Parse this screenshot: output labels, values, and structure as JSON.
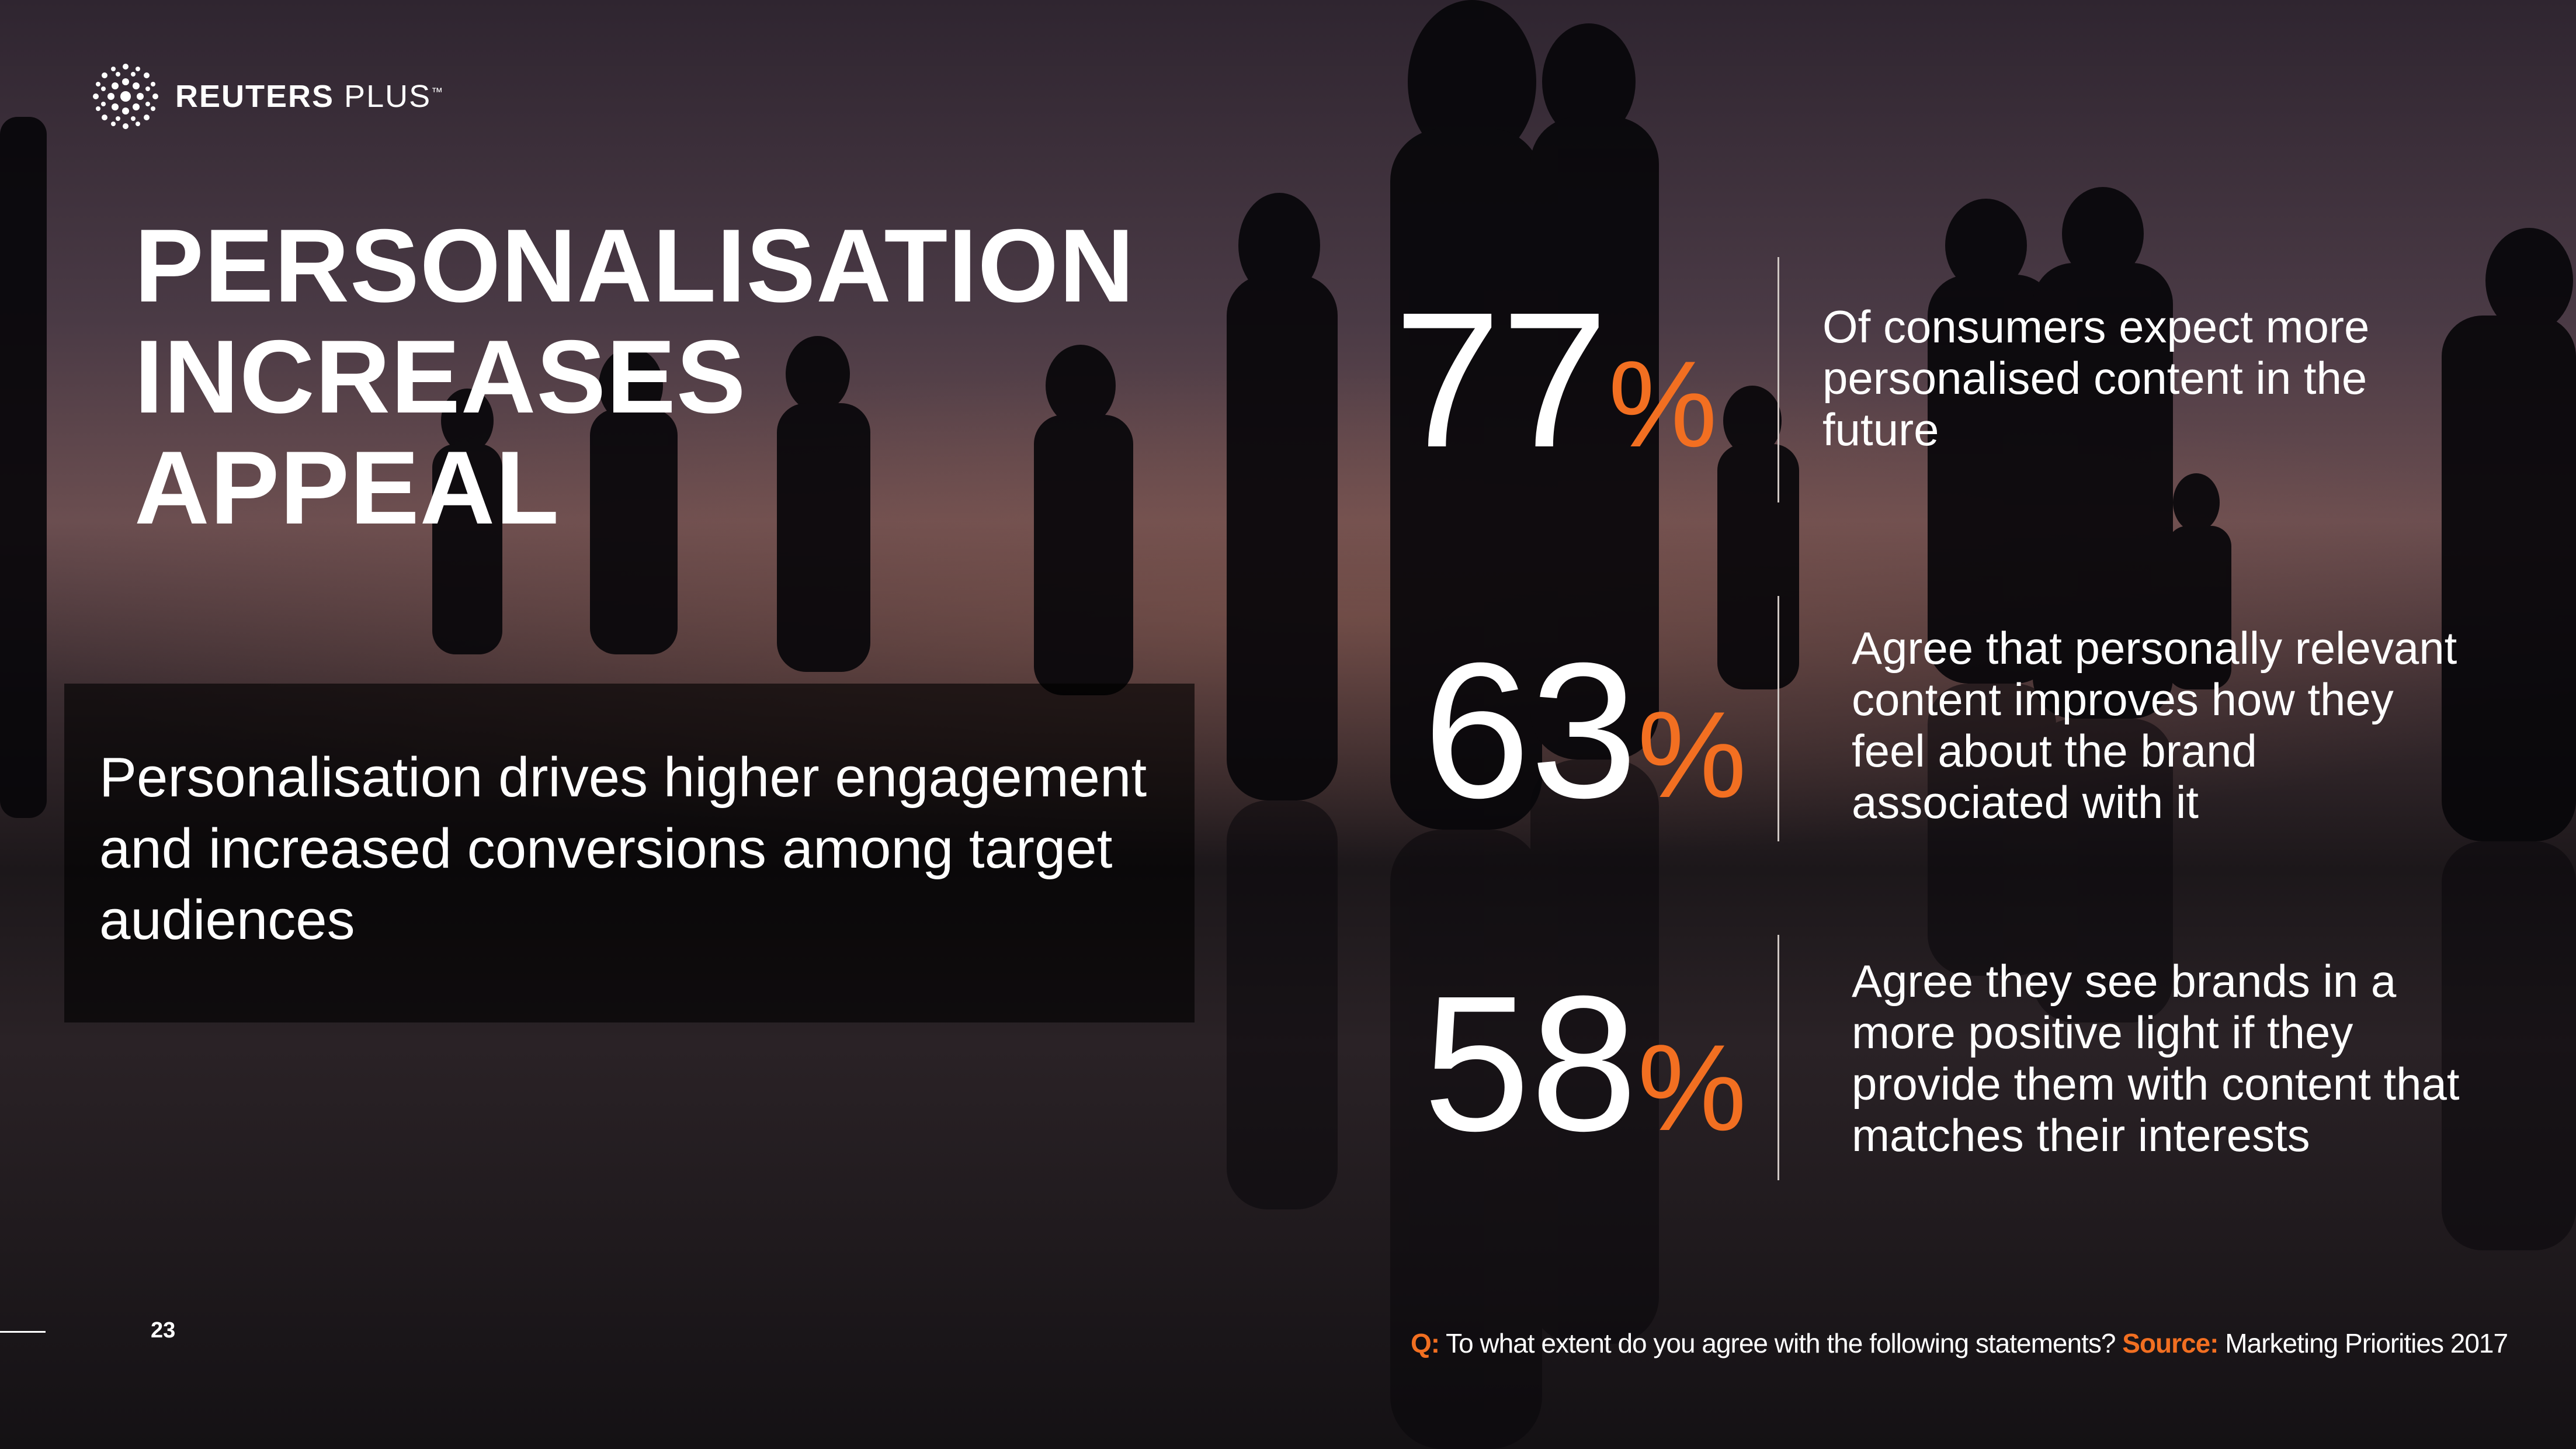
{
  "brand": {
    "name_bold": "REUTERS",
    "name_light": "PLUS",
    "trademark": "™",
    "logo_icon": "reuters-dot-ring-logo"
  },
  "title": {
    "line1": "PERSONALISATION",
    "line2": "INCREASES APPEAL"
  },
  "subtitle": "Personalisation drives higher engagement and increased conversions among target audiences",
  "stats": [
    {
      "value": "77",
      "unit": "%",
      "text": "Of consumers expect more personalised content in the future"
    },
    {
      "value": "63",
      "unit": "%",
      "text": "Agree that personally relevant content improves how they feel about the brand associated with it"
    },
    {
      "value": "58",
      "unit": "%",
      "text": "Agree they see brands in a more positive light if they provide them with content that matches their interests"
    }
  ],
  "page_number": "23",
  "footer": {
    "q_label": "Q:",
    "question": "To what extent do you agree with the following statements?",
    "source_label": "Source:",
    "source": "Marketing Priorities 2017"
  },
  "colors": {
    "accent": "#f26f21",
    "text": "#ffffff"
  }
}
